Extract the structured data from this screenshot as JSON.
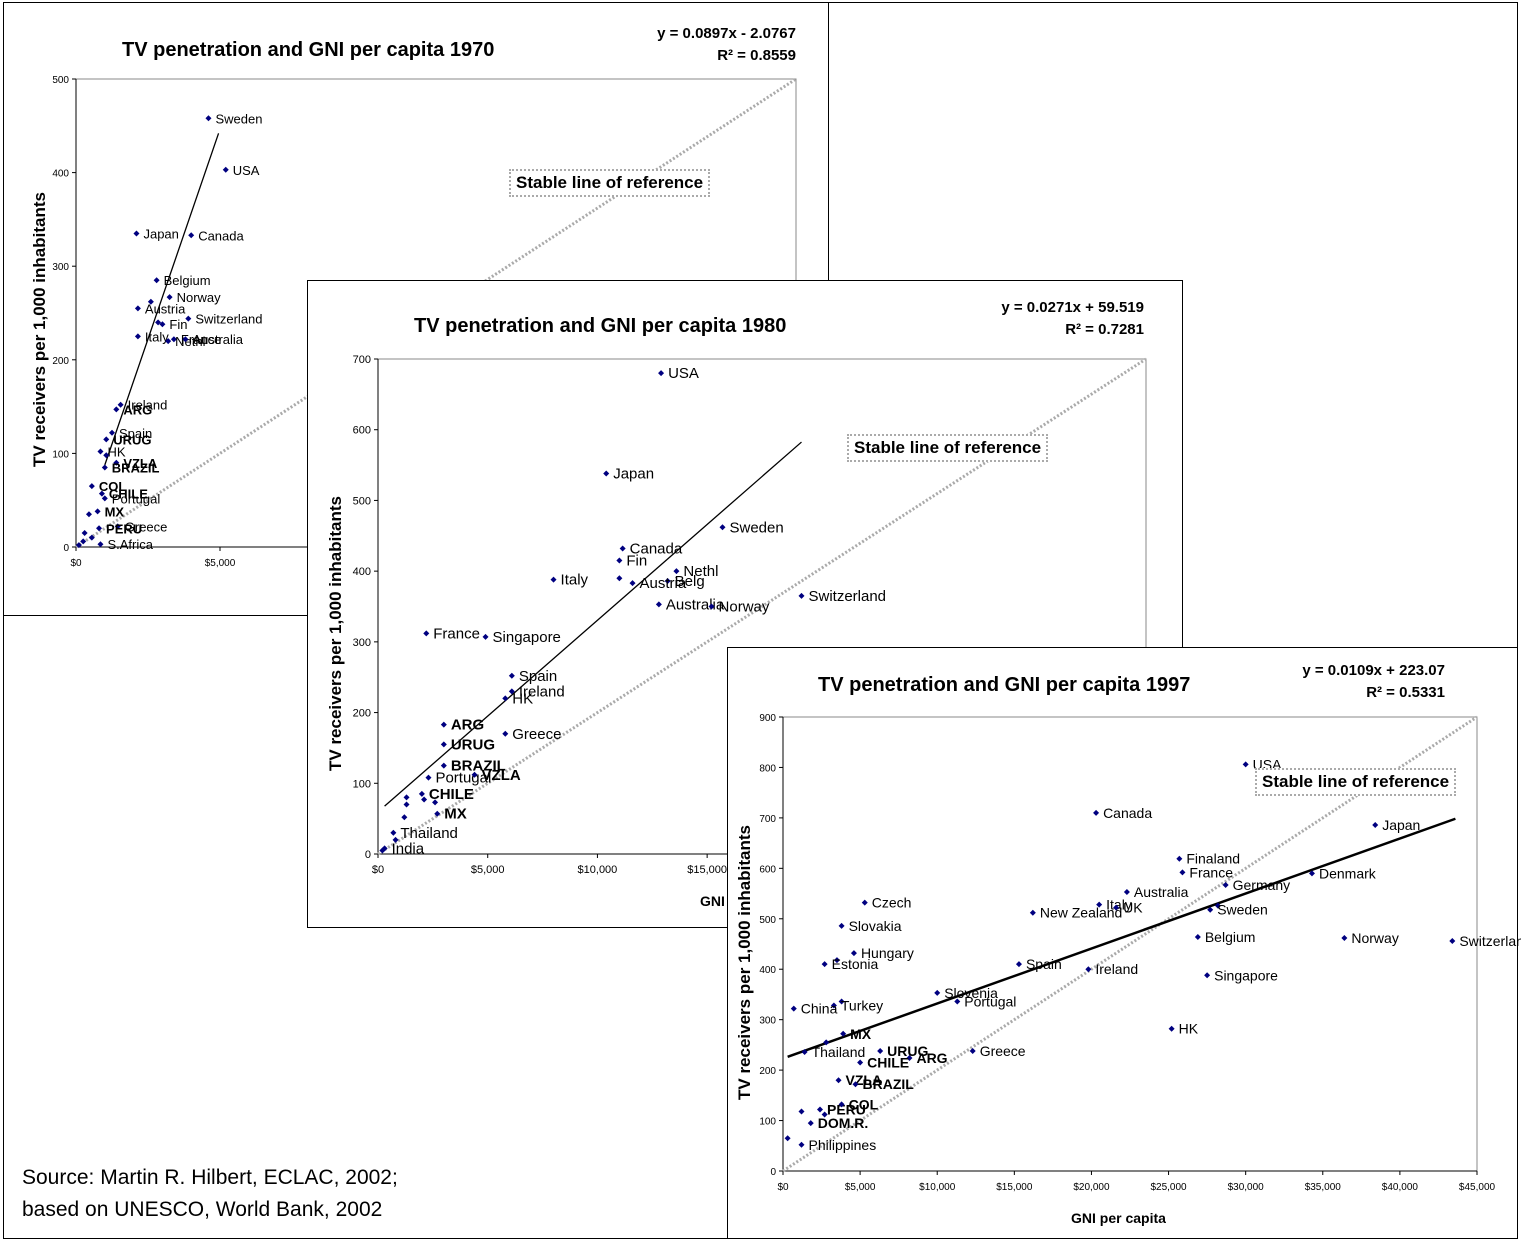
{
  "source": {
    "line1": "Source: Martin R. Hilbert, ECLAC, 2002;",
    "line2": "based on UNESCO, World Bank, 2002"
  },
  "chart_data": [
    {
      "type": "scatter",
      "title": "TV penetration and GNI per capita 1970",
      "equation": "y = 0.0897x - 2.0767",
      "r2": "R² = 0.8559",
      "ylabel": "TV receivers per 1,000 inhabitants",
      "xlabel": "",
      "reference_label": "Stable line of reference",
      "xlim": [
        0,
        25000
      ],
      "ylim": [
        0,
        500
      ],
      "xticks": [
        "$0",
        "$5,000"
      ],
      "yticks": [
        "0",
        "100",
        "200",
        "300",
        "400",
        "500"
      ],
      "trend": {
        "slope": 0.0897,
        "intercept": -2.0767
      },
      "reference_line": [
        [
          0,
          0
        ],
        [
          25000,
          500
        ]
      ],
      "points": [
        {
          "x": 4600,
          "y": 458,
          "label": "Sweden",
          "bold": false
        },
        {
          "x": 5200,
          "y": 403,
          "label": "USA",
          "bold": false
        },
        {
          "x": 2100,
          "y": 335,
          "label": "Japan",
          "bold": false
        },
        {
          "x": 4000,
          "y": 333,
          "label": "Canada",
          "bold": false
        },
        {
          "x": 2800,
          "y": 285,
          "label": "Belgium",
          "bold": false
        },
        {
          "x": 3250,
          "y": 267,
          "label": "Norway",
          "bold": false
        },
        {
          "x": 2600,
          "y": 262,
          "label": "",
          "bold": false
        },
        {
          "x": 2150,
          "y": 255,
          "label": "Austria",
          "bold": false
        },
        {
          "x": 3000,
          "y": 238,
          "label": "Fin",
          "bold": false
        },
        {
          "x": 2850,
          "y": 240,
          "label": "",
          "bold": false
        },
        {
          "x": 3900,
          "y": 244,
          "label": "Switzerland",
          "bold": false
        },
        {
          "x": 2150,
          "y": 225,
          "label": "Italy",
          "bold": false
        },
        {
          "x": 3400,
          "y": 222,
          "label": "France",
          "bold": false
        },
        {
          "x": 3200,
          "y": 220,
          "label": "Nethl",
          "bold": false
        },
        {
          "x": 3800,
          "y": 222,
          "label": "Australia",
          "bold": false
        },
        {
          "x": 1550,
          "y": 152,
          "label": "Ireland",
          "bold": false
        },
        {
          "x": 1400,
          "y": 147,
          "label": "ARG",
          "bold": true
        },
        {
          "x": 1250,
          "y": 122,
          "label": "Spain",
          "bold": false
        },
        {
          "x": 1050,
          "y": 115,
          "label": "URUG",
          "bold": true
        },
        {
          "x": 850,
          "y": 102,
          "label": "HK",
          "bold": false
        },
        {
          "x": 1050,
          "y": 98,
          "label": "",
          "bold": false
        },
        {
          "x": 1400,
          "y": 90,
          "label": "VZLA",
          "bold": true
        },
        {
          "x": 1000,
          "y": 85,
          "label": "BRAZIL",
          "bold": true
        },
        {
          "x": 550,
          "y": 65,
          "label": "COL",
          "bold": true
        },
        {
          "x": 900,
          "y": 57,
          "label": "CHILE",
          "bold": true
        },
        {
          "x": 1000,
          "y": 52,
          "label": "Portugal",
          "bold": false
        },
        {
          "x": 750,
          "y": 38,
          "label": "MX",
          "bold": true
        },
        {
          "x": 450,
          "y": 35,
          "label": "",
          "bold": false
        },
        {
          "x": 1450,
          "y": 22,
          "label": "Greece",
          "bold": false
        },
        {
          "x": 800,
          "y": 20,
          "label": "PERU",
          "bold": true
        },
        {
          "x": 300,
          "y": 15,
          "label": "",
          "bold": false
        },
        {
          "x": 550,
          "y": 10,
          "label": "",
          "bold": false
        },
        {
          "x": 250,
          "y": 6,
          "label": "",
          "bold": false
        },
        {
          "x": 850,
          "y": 3,
          "label": "S.Africa",
          "bold": false
        },
        {
          "x": 100,
          "y": 2,
          "label": "",
          "bold": false
        }
      ]
    },
    {
      "type": "scatter",
      "title": "TV penetration and GNI per capita 1980",
      "equation": "y = 0.0271x + 59.519",
      "r2": "R² = 0.7281",
      "ylabel": "TV receivers per 1,000 inhabitants",
      "xlabel": "GNI per capita",
      "reference_label": "Stable line of reference",
      "xlim": [
        0,
        35000
      ],
      "ylim": [
        0,
        700
      ],
      "xticks": [
        "$0",
        "$5,000",
        "$10,000",
        "$15,000"
      ],
      "yticks": [
        "0",
        "100",
        "200",
        "300",
        "400",
        "500",
        "600",
        "700"
      ],
      "trend": {
        "slope": 0.0271,
        "intercept": 59.519
      },
      "reference_line": [
        [
          0,
          0
        ],
        [
          35000,
          700
        ]
      ],
      "points": [
        {
          "x": 12900,
          "y": 680,
          "label": "USA",
          "bold": false
        },
        {
          "x": 10400,
          "y": 538,
          "label": "Japan",
          "bold": false
        },
        {
          "x": 15700,
          "y": 462,
          "label": "Sweden",
          "bold": false
        },
        {
          "x": 11150,
          "y": 432,
          "label": "Canada",
          "bold": false
        },
        {
          "x": 11000,
          "y": 415,
          "label": "Fin",
          "bold": false
        },
        {
          "x": 13600,
          "y": 400,
          "label": "Nethl",
          "bold": false
        },
        {
          "x": 8000,
          "y": 388,
          "label": "Italy",
          "bold": false
        },
        {
          "x": 11000,
          "y": 390,
          "label": "",
          "bold": false
        },
        {
          "x": 13200,
          "y": 386,
          "label": "Belg",
          "bold": false
        },
        {
          "x": 11600,
          "y": 383,
          "label": "Austria",
          "bold": false
        },
        {
          "x": 12800,
          "y": 353,
          "label": "Australia",
          "bold": false
        },
        {
          "x": 15200,
          "y": 350,
          "label": "Norway",
          "bold": false
        },
        {
          "x": 19300,
          "y": 365,
          "label": "Switzerland",
          "bold": false
        },
        {
          "x": 2200,
          "y": 312,
          "label": "France",
          "bold": false
        },
        {
          "x": 4900,
          "y": 307,
          "label": "Singapore",
          "bold": false
        },
        {
          "x": 6100,
          "y": 252,
          "label": "Spain",
          "bold": false
        },
        {
          "x": 6100,
          "y": 230,
          "label": "Ireland",
          "bold": false
        },
        {
          "x": 5800,
          "y": 220,
          "label": "HK",
          "bold": false
        },
        {
          "x": 3000,
          "y": 183,
          "label": "ARG",
          "bold": true
        },
        {
          "x": 5800,
          "y": 170,
          "label": "Greece",
          "bold": false
        },
        {
          "x": 3000,
          "y": 155,
          "label": "URUG",
          "bold": true
        },
        {
          "x": 3000,
          "y": 125,
          "label": "BRAZIL",
          "bold": true
        },
        {
          "x": 2300,
          "y": 108,
          "label": "Portugal",
          "bold": false
        },
        {
          "x": 4400,
          "y": 112,
          "label": "VZLA",
          "bold": true
        },
        {
          "x": 1300,
          "y": 80,
          "label": "",
          "bold": false
        },
        {
          "x": 2000,
          "y": 85,
          "label": "CHILE",
          "bold": true
        },
        {
          "x": 2100,
          "y": 77,
          "label": "",
          "bold": false
        },
        {
          "x": 2600,
          "y": 73,
          "label": "",
          "bold": false
        },
        {
          "x": 1300,
          "y": 70,
          "label": "",
          "bold": false
        },
        {
          "x": 2700,
          "y": 57,
          "label": "MX",
          "bold": true
        },
        {
          "x": 1200,
          "y": 52,
          "label": "",
          "bold": false
        },
        {
          "x": 700,
          "y": 30,
          "label": "Thailand",
          "bold": false
        },
        {
          "x": 800,
          "y": 20,
          "label": "",
          "bold": false
        },
        {
          "x": 300,
          "y": 8,
          "label": "India",
          "bold": false
        },
        {
          "x": 200,
          "y": 5,
          "label": "",
          "bold": false
        }
      ]
    },
    {
      "type": "scatter",
      "title": "TV penetration and GNI per capita 1997",
      "equation": "y = 0.0109x + 223.07",
      "r2": "R² = 0.5331",
      "ylabel": "TV receivers per 1,000 inhabitants",
      "xlabel": "GNI per capita",
      "reference_label": "Stable line of reference",
      "xlim": [
        0,
        45000
      ],
      "ylim": [
        0,
        900
      ],
      "xticks": [
        "$0",
        "$5,000",
        "$10,000",
        "$15,000",
        "$20,000",
        "$25,000",
        "$30,000",
        "$35,000",
        "$40,000",
        "$45,000"
      ],
      "yticks": [
        "0",
        "100",
        "200",
        "300",
        "400",
        "500",
        "600",
        "700",
        "800",
        "900"
      ],
      "trend": {
        "slope": 0.0109,
        "intercept": 223.07
      },
      "reference_line": [
        [
          0,
          0
        ],
        [
          45000,
          900
        ]
      ],
      "points": [
        {
          "x": 30000,
          "y": 806,
          "label": "USA",
          "bold": false
        },
        {
          "x": 38400,
          "y": 686,
          "label": "Japan",
          "bold": false
        },
        {
          "x": 20300,
          "y": 710,
          "label": "Canada",
          "bold": false
        },
        {
          "x": 25700,
          "y": 619,
          "label": "Finaland",
          "bold": false
        },
        {
          "x": 25900,
          "y": 592,
          "label": "France",
          "bold": false
        },
        {
          "x": 34300,
          "y": 590,
          "label": "Denmark",
          "bold": false
        },
        {
          "x": 28700,
          "y": 567,
          "label": "Germany",
          "bold": false
        },
        {
          "x": 22300,
          "y": 553,
          "label": "Australia",
          "bold": false
        },
        {
          "x": 5300,
          "y": 532,
          "label": "Czech",
          "bold": false
        },
        {
          "x": 20500,
          "y": 528,
          "label": "Italy",
          "bold": false
        },
        {
          "x": 21600,
          "y": 522,
          "label": "UK",
          "bold": false
        },
        {
          "x": 28200,
          "y": 526,
          "label": "",
          "bold": false
        },
        {
          "x": 27700,
          "y": 518,
          "label": "Sweden",
          "bold": false
        },
        {
          "x": 16200,
          "y": 512,
          "label": "New Zealand",
          "bold": false
        },
        {
          "x": 3800,
          "y": 486,
          "label": "Slovakia",
          "bold": false
        },
        {
          "x": 26900,
          "y": 464,
          "label": "Belgium",
          "bold": false
        },
        {
          "x": 36400,
          "y": 462,
          "label": "Norway",
          "bold": false
        },
        {
          "x": 43400,
          "y": 456,
          "label": "Switzerland",
          "bold": false
        },
        {
          "x": 4600,
          "y": 432,
          "label": "Hungary",
          "bold": false
        },
        {
          "x": 3500,
          "y": 418,
          "label": "",
          "bold": false
        },
        {
          "x": 2700,
          "y": 410,
          "label": "Estonia",
          "bold": false
        },
        {
          "x": 15300,
          "y": 410,
          "label": "Spain",
          "bold": false
        },
        {
          "x": 19800,
          "y": 400,
          "label": "Ireland",
          "bold": false
        },
        {
          "x": 27500,
          "y": 388,
          "label": "Singapore",
          "bold": false
        },
        {
          "x": 10000,
          "y": 353,
          "label": "Slovenia",
          "bold": false
        },
        {
          "x": 11300,
          "y": 336,
          "label": "Portugal",
          "bold": false
        },
        {
          "x": 3800,
          "y": 336,
          "label": "",
          "bold": false
        },
        {
          "x": 3300,
          "y": 328,
          "label": "Turkey",
          "bold": false
        },
        {
          "x": 700,
          "y": 322,
          "label": "China",
          "bold": false
        },
        {
          "x": 3900,
          "y": 272,
          "label": "MX",
          "bold": true
        },
        {
          "x": 25200,
          "y": 282,
          "label": "HK",
          "bold": false
        },
        {
          "x": 6300,
          "y": 238,
          "label": "URUG",
          "bold": true
        },
        {
          "x": 12300,
          "y": 238,
          "label": "Greece",
          "bold": false
        },
        {
          "x": 2800,
          "y": 255,
          "label": "",
          "bold": false
        },
        {
          "x": 1400,
          "y": 236,
          "label": "Thailand",
          "bold": false
        },
        {
          "x": 8200,
          "y": 224,
          "label": "ARG",
          "bold": true
        },
        {
          "x": 5000,
          "y": 215,
          "label": "CHILE",
          "bold": true
        },
        {
          "x": 3600,
          "y": 180,
          "label": "VZLA",
          "bold": true
        },
        {
          "x": 4700,
          "y": 172,
          "label": "BRAZIL",
          "bold": true
        },
        {
          "x": 2400,
          "y": 122,
          "label": "PERU",
          "bold": true
        },
        {
          "x": 1200,
          "y": 118,
          "label": "",
          "bold": false
        },
        {
          "x": 3800,
          "y": 132,
          "label": "COL",
          "bold": true
        },
        {
          "x": 2700,
          "y": 112,
          "label": "",
          "bold": false
        },
        {
          "x": 1800,
          "y": 95,
          "label": "DOM.R.",
          "bold": true
        },
        {
          "x": 300,
          "y": 65,
          "label": "",
          "bold": false
        },
        {
          "x": 1200,
          "y": 52,
          "label": "Philippines",
          "bold": false
        }
      ]
    }
  ]
}
